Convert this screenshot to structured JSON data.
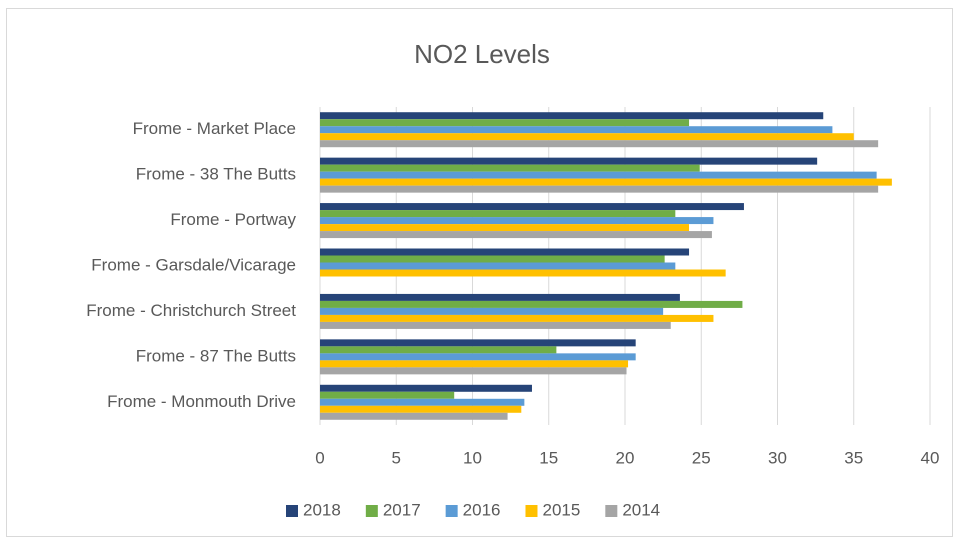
{
  "chart_data": {
    "type": "barh",
    "title": "NO2 Levels",
    "categories": [
      "Frome - Market Place",
      "Frome - 38 The Butts",
      "Frome - Portway",
      "Frome - Garsdale/Vicarage",
      "Frome - Christchurch Street",
      "Frome - 87 The Butts",
      "Frome - Monmouth Drive"
    ],
    "series": [
      {
        "name": "2018",
        "color": "#264478",
        "values": [
          33.0,
          32.6,
          27.8,
          24.2,
          23.6,
          20.7,
          13.9
        ]
      },
      {
        "name": "2017",
        "color": "#70ad47",
        "values": [
          24.2,
          24.9,
          23.3,
          22.6,
          27.7,
          15.5,
          8.8
        ]
      },
      {
        "name": "2016",
        "color": "#5b9bd5",
        "values": [
          33.6,
          36.5,
          25.8,
          23.3,
          22.5,
          20.7,
          13.4
        ]
      },
      {
        "name": "2015",
        "color": "#ffc000",
        "values": [
          35.0,
          37.5,
          24.2,
          26.6,
          25.8,
          20.2,
          13.2
        ]
      },
      {
        "name": "2014",
        "color": "#a5a5a5",
        "values": [
          36.6,
          36.6,
          25.7,
          null,
          23.0,
          20.1,
          12.3
        ]
      }
    ],
    "xlim": [
      0,
      40
    ],
    "xticks": [
      0,
      5,
      10,
      15,
      20,
      25,
      30,
      35,
      40
    ],
    "grid": true,
    "legend": "bottom"
  }
}
